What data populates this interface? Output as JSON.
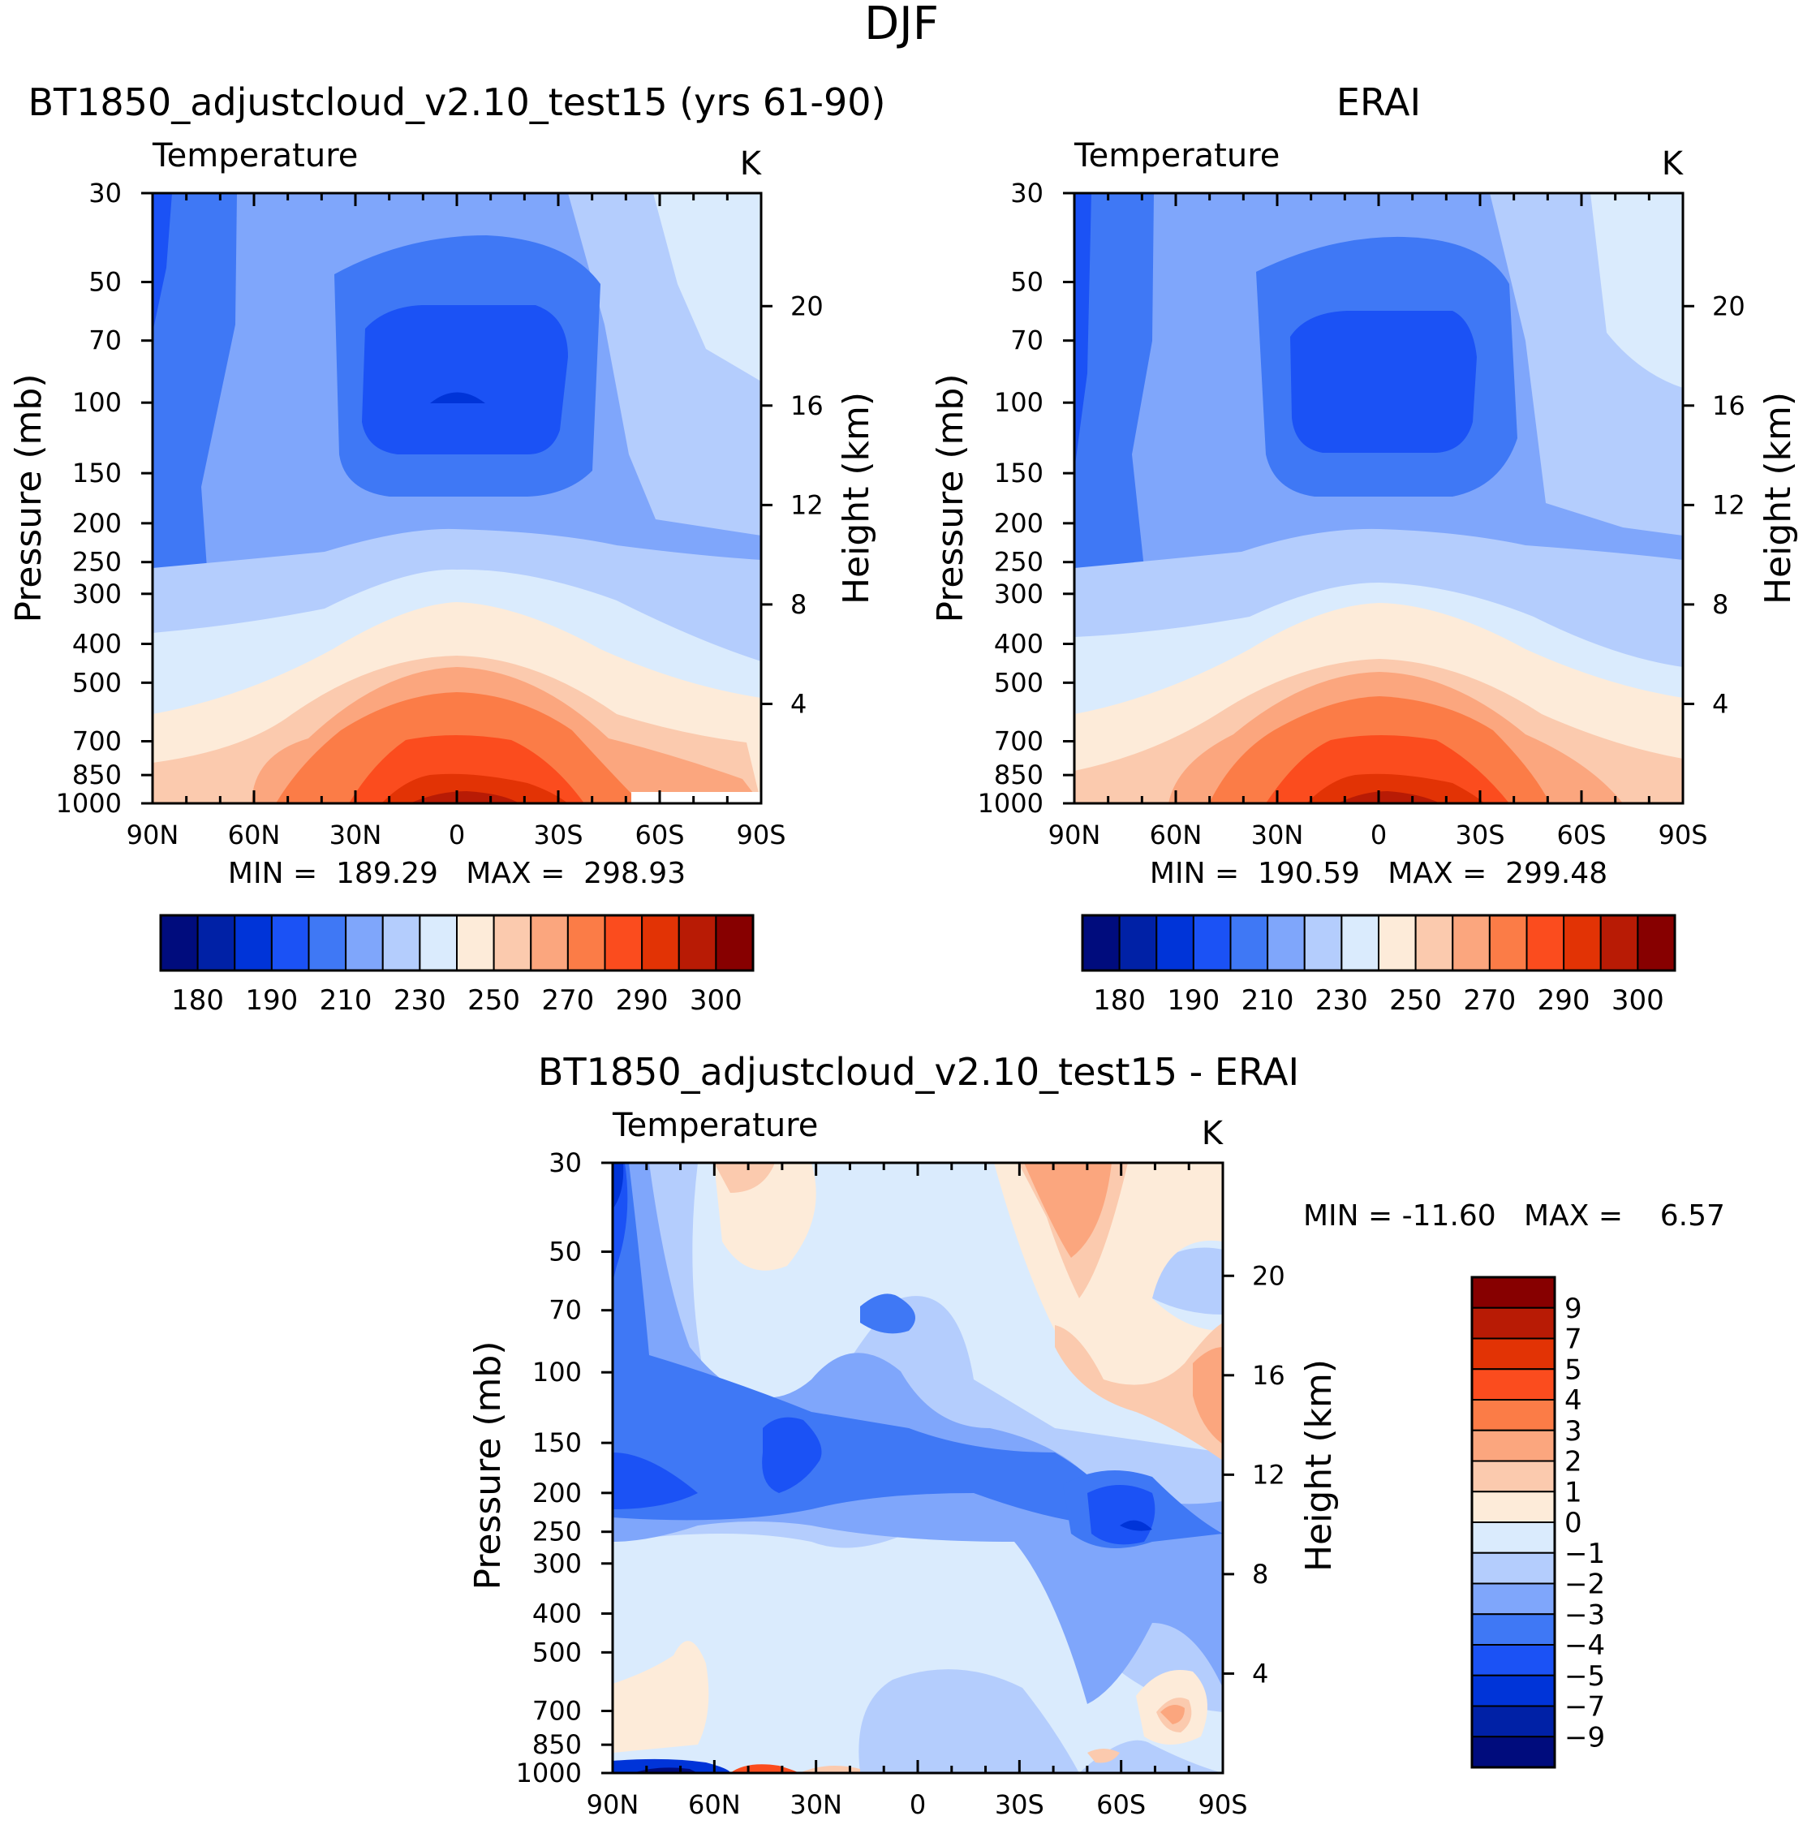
{
  "page_title": "DJF",
  "palettes": {
    "abs": [
      "#000c7d",
      "#0021a6",
      "#0034d8",
      "#1b52f5",
      "#3f78f5",
      "#7fa6fb",
      "#b4cdfd",
      "#daebfd",
      "#fdebd9",
      "#fbcaae",
      "#fba67e",
      "#fb7c47",
      "#fb4c1e",
      "#e23305",
      "#b81b05",
      "#870000"
    ],
    "diff": [
      "#000c7d",
      "#0021a6",
      "#0034d8",
      "#1b52f5",
      "#3f78f5",
      "#7fa6fb",
      "#b4cdfd",
      "#daebfd",
      "#fdebd9",
      "#fbcaae",
      "#fba67e",
      "#fb7c47",
      "#fb4c1e",
      "#e23305",
      "#b81b05",
      "#870000"
    ]
  },
  "chart_data": [
    {
      "id": "model",
      "type": "contour",
      "title": "BT1850_adjustcloud_v2.10_test15 (yrs 61-90)",
      "left_label": "Temperature",
      "right_label": "K",
      "ylabel": "Pressure (mb)",
      "y2label": "Height (km)",
      "x_ticks": [
        "90N",
        "60N",
        "30N",
        "0",
        "30S",
        "60S",
        "90S"
      ],
      "y_ticks": [
        "30",
        "50",
        "70",
        "100",
        "150",
        "200",
        "250",
        "300",
        "400",
        "500",
        "700",
        "850",
        "1000"
      ],
      "y2_ticks": [
        "20",
        "16",
        "12",
        "8",
        "4"
      ],
      "stats": "MIN =  189.29   MAX =  298.93",
      "colorbar_labels": [
        "180",
        "190",
        "210",
        "230",
        "250",
        "270",
        "290",
        "300"
      ]
    },
    {
      "id": "obs",
      "type": "contour",
      "title": "ERAI",
      "left_label": "Temperature",
      "right_label": "K",
      "ylabel": "Pressure (mb)",
      "y2label": "Height (km)",
      "x_ticks": [
        "90N",
        "60N",
        "30N",
        "0",
        "30S",
        "60S",
        "90S"
      ],
      "y_ticks": [
        "30",
        "50",
        "70",
        "100",
        "150",
        "200",
        "250",
        "300",
        "400",
        "500",
        "700",
        "850",
        "1000"
      ],
      "y2_ticks": [
        "20",
        "16",
        "12",
        "8",
        "4"
      ],
      "stats": "MIN =  190.59   MAX =  299.48",
      "colorbar_labels": [
        "180",
        "190",
        "210",
        "230",
        "250",
        "270",
        "290",
        "300"
      ]
    },
    {
      "id": "diff",
      "type": "contour",
      "title": "BT1850_adjustcloud_v2.10_test15 - ERAI",
      "left_label": "Temperature",
      "right_label": "K",
      "ylabel": "Pressure (mb)",
      "y2label": "Height (km)",
      "x_ticks": [
        "90N",
        "60N",
        "30N",
        "0",
        "30S",
        "60S",
        "90S"
      ],
      "y_ticks": [
        "30",
        "50",
        "70",
        "100",
        "150",
        "200",
        "250",
        "300",
        "400",
        "500",
        "700",
        "850",
        "1000"
      ],
      "y2_ticks": [
        "20",
        "16",
        "12",
        "8",
        "4"
      ],
      "stats": "MIN = -11.60   MAX =    6.57",
      "colorbar_labels": [
        "9",
        "7",
        "5",
        "4",
        "3",
        "2",
        "1",
        "0",
        "-1",
        "-2",
        "-3",
        "-4",
        "-5",
        "-7",
        "-9"
      ]
    }
  ]
}
